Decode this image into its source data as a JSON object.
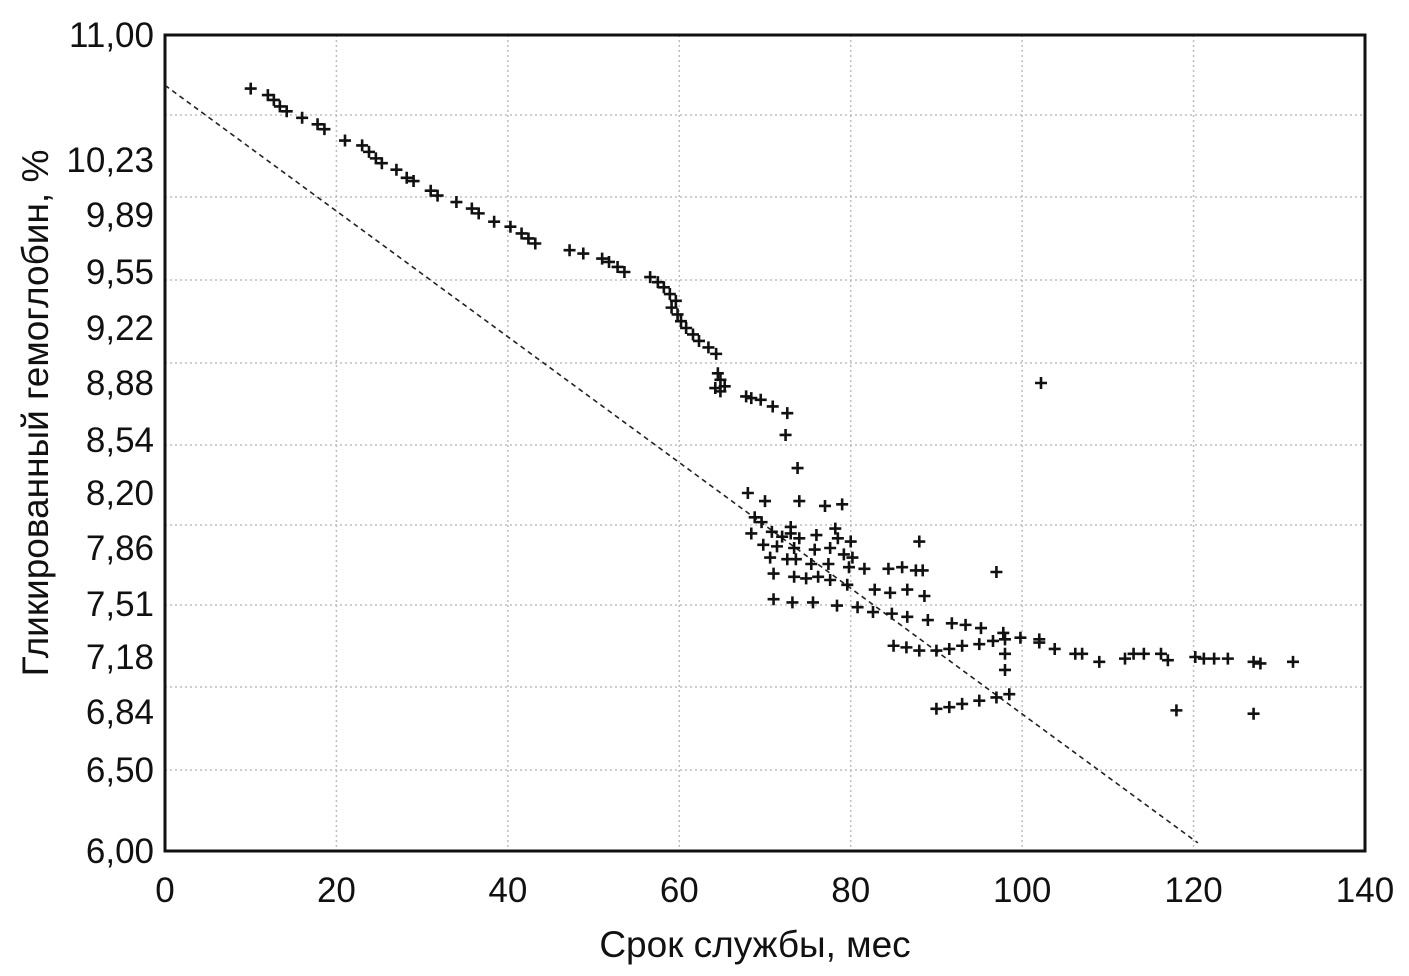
{
  "chart_data": {
    "type": "scatter",
    "xlabel": "Срок службы, мес",
    "ylabel": "Гликированный гемоглобин, %",
    "xlim": [
      0,
      140
    ],
    "ylim": [
      6.0,
      11.0
    ],
    "y_scale": "nonlinear (tick values irregularly spaced)",
    "x_ticks": [
      "0",
      "20",
      "40",
      "60",
      "80",
      "100",
      "120",
      "140"
    ],
    "y_ticks": [
      "11,00",
      "10,23",
      "9,89",
      "9,55",
      "9,22",
      "8,88",
      "8,54",
      "8,20",
      "7,86",
      "7,51",
      "7,18",
      "6,84",
      "6,50",
      "6,00"
    ],
    "y_tick_values": [
      11.0,
      10.23,
      9.89,
      9.55,
      9.22,
      8.88,
      8.54,
      8.2,
      7.86,
      7.51,
      7.18,
      6.84,
      6.5,
      6.0
    ],
    "grid": true,
    "marker": "+",
    "trend_line": {
      "style": "dashed",
      "x": [
        0,
        120.5
      ],
      "y": [
        10.69,
        6.05
      ]
    },
    "points": [
      [
        10,
        10.67
      ],
      [
        12,
        10.63
      ],
      [
        12.7,
        10.6
      ],
      [
        13.4,
        10.56
      ],
      [
        14.2,
        10.53
      ],
      [
        16,
        10.49
      ],
      [
        17.8,
        10.45
      ],
      [
        18.6,
        10.42
      ],
      [
        21,
        10.35
      ],
      [
        23,
        10.32
      ],
      [
        23.8,
        10.28
      ],
      [
        24.6,
        10.24
      ],
      [
        25.3,
        10.21
      ],
      [
        27,
        10.17
      ],
      [
        28.2,
        10.12
      ],
      [
        29,
        10.1
      ],
      [
        31,
        10.04
      ],
      [
        31.8,
        10.01
      ],
      [
        34,
        9.97
      ],
      [
        35.8,
        9.93
      ],
      [
        36.6,
        9.9
      ],
      [
        38.4,
        9.85
      ],
      [
        40.3,
        9.82
      ],
      [
        41.6,
        9.78
      ],
      [
        42.4,
        9.75
      ],
      [
        43.2,
        9.72
      ],
      [
        47.2,
        9.68
      ],
      [
        48.8,
        9.66
      ],
      [
        51,
        9.63
      ],
      [
        51.8,
        9.61
      ],
      [
        52.8,
        9.58
      ],
      [
        53.6,
        9.55
      ],
      [
        56.6,
        9.52
      ],
      [
        57.5,
        9.49
      ],
      [
        58.2,
        9.46
      ],
      [
        58.9,
        9.42
      ],
      [
        59.6,
        9.38
      ],
      [
        59.1,
        9.34
      ],
      [
        59.8,
        9.3
      ],
      [
        60.2,
        9.26
      ],
      [
        60.8,
        9.22
      ],
      [
        61.6,
        9.18
      ],
      [
        62.3,
        9.14
      ],
      [
        63.4,
        9.1
      ],
      [
        64.3,
        9.06
      ],
      [
        64.5,
        8.94
      ],
      [
        64.8,
        8.9
      ],
      [
        65.3,
        8.86
      ],
      [
        64.2,
        8.85
      ],
      [
        64.8,
        8.83
      ],
      [
        67.8,
        8.8
      ],
      [
        68.4,
        8.79
      ],
      [
        69.5,
        8.78
      ],
      [
        70.9,
        8.74
      ],
      [
        72.6,
        8.7
      ],
      [
        68,
        8.2
      ],
      [
        70,
        8.15
      ],
      [
        74,
        8.15
      ],
      [
        77,
        8.12
      ],
      [
        79,
        8.13
      ],
      [
        68.8,
        8.05
      ],
      [
        69.6,
        8.02
      ],
      [
        73,
        7.99
      ],
      [
        78.2,
        7.98
      ],
      [
        68.4,
        7.95
      ],
      [
        70.8,
        7.96
      ],
      [
        72,
        7.93
      ],
      [
        73,
        7.95
      ],
      [
        74,
        7.92
      ],
      [
        76,
        7.94
      ],
      [
        78.5,
        7.92
      ],
      [
        80,
        7.9
      ],
      [
        69.8,
        7.88
      ],
      [
        71.4,
        7.87
      ],
      [
        73.4,
        7.86
      ],
      [
        75.8,
        7.85
      ],
      [
        77.6,
        7.86
      ],
      [
        79.2,
        7.82
      ],
      [
        80.2,
        7.8
      ],
      [
        70.6,
        7.8
      ],
      [
        72.6,
        7.79
      ],
      [
        73.6,
        7.79
      ],
      [
        75.4,
        7.76
      ],
      [
        77.4,
        7.76
      ],
      [
        79.8,
        7.74
      ],
      [
        81.6,
        7.73
      ],
      [
        84.4,
        7.73
      ],
      [
        86,
        7.74
      ],
      [
        87.6,
        7.72
      ],
      [
        88.4,
        7.72
      ],
      [
        97,
        7.71
      ],
      [
        71,
        7.7
      ],
      [
        73.4,
        7.68
      ],
      [
        74.8,
        7.67
      ],
      [
        76.2,
        7.68
      ],
      [
        77.6,
        7.66
      ],
      [
        79.6,
        7.63
      ],
      [
        82.8,
        7.6
      ],
      [
        84.6,
        7.58
      ],
      [
        86.6,
        7.6
      ],
      [
        88.6,
        7.56
      ],
      [
        71,
        7.54
      ],
      [
        73.2,
        7.52
      ],
      [
        75.6,
        7.52
      ],
      [
        78.4,
        7.5
      ],
      [
        80.8,
        7.49
      ],
      [
        82.6,
        7.46
      ],
      [
        84.8,
        7.45
      ],
      [
        86.6,
        7.43
      ],
      [
        89,
        7.41
      ],
      [
        91.8,
        7.39
      ],
      [
        93.4,
        7.38
      ],
      [
        95.2,
        7.36
      ],
      [
        97.8,
        7.33
      ],
      [
        99.8,
        7.3
      ],
      [
        102,
        7.27
      ],
      [
        103.8,
        7.23
      ],
      [
        106.2,
        7.2
      ],
      [
        107,
        7.2
      ],
      [
        109,
        7.15
      ],
      [
        112,
        7.17
      ],
      [
        113,
        7.2
      ],
      [
        114.2,
        7.2
      ],
      [
        116.2,
        7.2
      ],
      [
        117,
        7.16
      ],
      [
        120.2,
        7.18
      ],
      [
        121.2,
        7.17
      ],
      [
        122.4,
        7.17
      ],
      [
        124,
        7.17
      ],
      [
        127,
        7.15
      ],
      [
        127.8,
        7.14
      ],
      [
        131.6,
        7.15
      ],
      [
        102,
        7.29
      ],
      [
        98,
        7.2
      ],
      [
        98,
        7.1
      ],
      [
        118,
        6.85
      ],
      [
        127,
        6.83
      ],
      [
        88,
        7.9
      ],
      [
        102.2,
        8.88
      ],
      [
        72.4,
        8.57
      ],
      [
        73.8,
        8.36
      ],
      [
        85,
        7.25
      ],
      [
        86.5,
        7.24
      ],
      [
        88,
        7.22
      ],
      [
        90,
        7.22
      ],
      [
        91.5,
        7.23
      ],
      [
        93,
        7.25
      ],
      [
        95,
        7.26
      ],
      [
        96.6,
        7.28
      ],
      [
        98,
        7.29
      ],
      [
        90,
        6.86
      ],
      [
        91.5,
        6.87
      ],
      [
        93,
        6.89
      ],
      [
        95,
        6.91
      ],
      [
        97,
        6.93
      ],
      [
        98.5,
        6.95
      ]
    ]
  }
}
